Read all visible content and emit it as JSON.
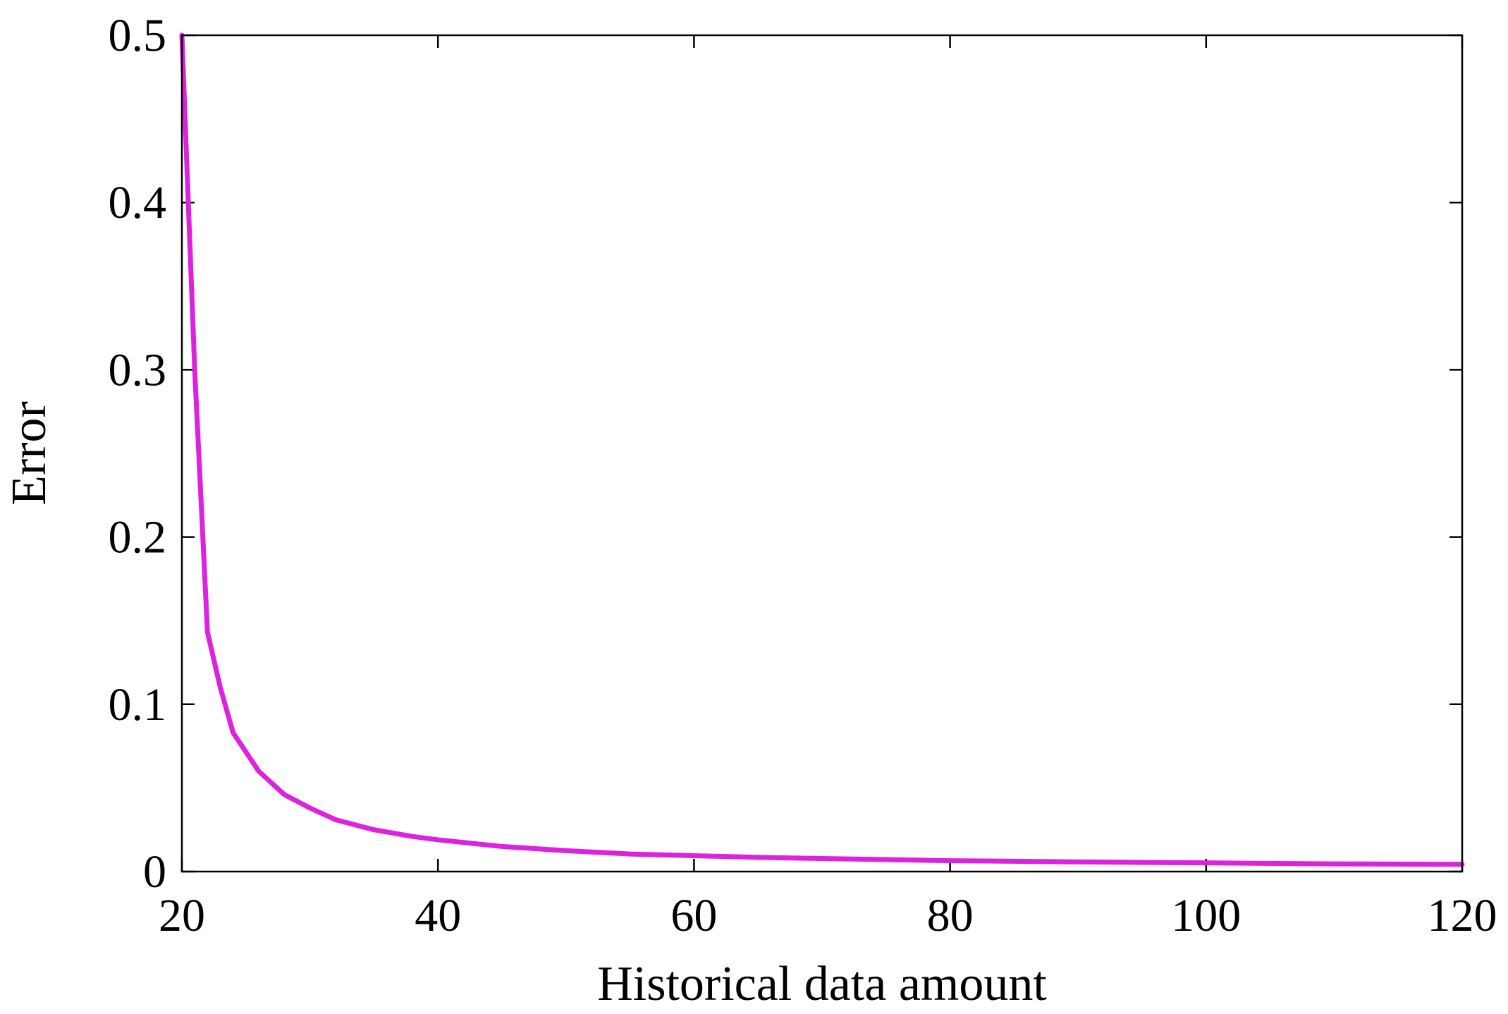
{
  "chart_data": {
    "type": "line",
    "title": "",
    "xlabel": "Historical data amount",
    "ylabel": "Error",
    "xlim": [
      20,
      120
    ],
    "ylim": [
      0,
      0.5
    ],
    "x_ticks": [
      20,
      40,
      60,
      80,
      100,
      120
    ],
    "x_tick_labels": [
      "20",
      "40",
      "60",
      "80",
      "100",
      "120"
    ],
    "y_ticks": [
      0,
      0.1,
      0.2,
      0.3,
      0.4,
      0.5
    ],
    "y_tick_labels": [
      "0",
      "0.1",
      "0.2",
      "0.3",
      "0.4",
      "0.5"
    ],
    "grid": false,
    "legend": "none",
    "line_color": "#dd22dd",
    "series": [
      {
        "x": [
          20,
          21,
          22,
          23,
          24,
          26,
          28,
          30,
          32,
          35,
          38,
          40,
          45,
          50,
          55,
          60,
          65,
          70,
          80,
          90,
          100,
          110,
          120
        ],
        "values": [
          0.5,
          0.3,
          0.143,
          0.11,
          0.083,
          0.06,
          0.046,
          0.038,
          0.031,
          0.025,
          0.021,
          0.019,
          0.015,
          0.0125,
          0.0105,
          0.0095,
          0.0085,
          0.0078,
          0.0065,
          0.0058,
          0.0052,
          0.0046,
          0.0043
        ]
      }
    ]
  }
}
